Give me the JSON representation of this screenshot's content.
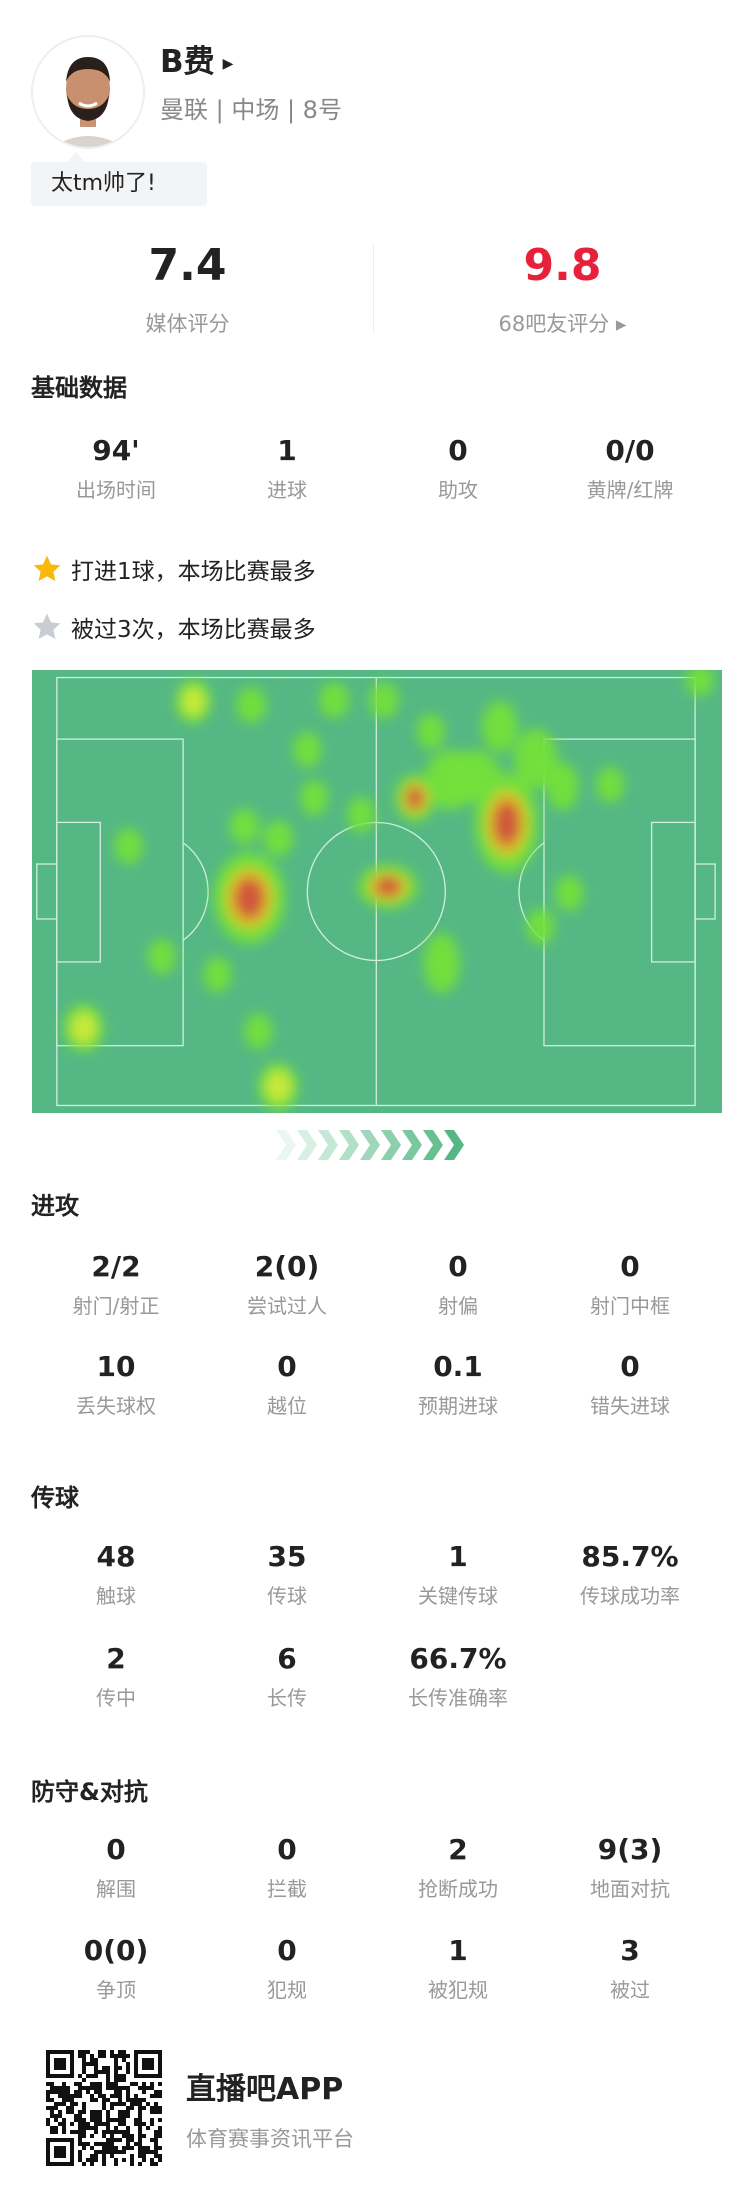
{
  "player": {
    "name": "B费",
    "subtitle": "曼联 | 中场 | 8号",
    "comment": "太tm帅了!",
    "name_arrow_icon": "triangle-right-icon"
  },
  "ratings": {
    "media": {
      "value": "7.4",
      "label": "媒体评分"
    },
    "fans": {
      "value": "9.8",
      "label": "68吧友评分 ▸",
      "color": "#e8213a"
    }
  },
  "basic": {
    "title": "基础数据",
    "stats": [
      {
        "value": "94'",
        "label": "出场时间"
      },
      {
        "value": "1",
        "label": "进球"
      },
      {
        "value": "0",
        "label": "助攻"
      },
      {
        "value": "0/0",
        "label": "黄牌/红牌"
      }
    ]
  },
  "highlights": [
    {
      "icon": "gold-star-icon",
      "text": "打进1球，本场比赛最多",
      "color": "#f9b90c"
    },
    {
      "icon": "silver-star-icon",
      "text": "被过3次，本场比赛最多",
      "color": "#c9ccd3"
    }
  ],
  "heatmap": {
    "pitch_color": "#55b884",
    "direction_icon": "chevron-right-icon"
  },
  "attack": {
    "title": "进攻",
    "stats": [
      {
        "value": "2/2",
        "label": "射门/射正"
      },
      {
        "value": "2(0)",
        "label": "尝试过人"
      },
      {
        "value": "0",
        "label": "射偏"
      },
      {
        "value": "0",
        "label": "射门中框"
      },
      {
        "value": "10",
        "label": "丢失球权"
      },
      {
        "value": "0",
        "label": "越位"
      },
      {
        "value": "0.1",
        "label": "预期进球"
      },
      {
        "value": "0",
        "label": "错失进球"
      }
    ]
  },
  "passing": {
    "title": "传球",
    "stats": [
      {
        "value": "48",
        "label": "触球"
      },
      {
        "value": "35",
        "label": "传球"
      },
      {
        "value": "1",
        "label": "关键传球"
      },
      {
        "value": "85.7%",
        "label": "传球成功率"
      },
      {
        "value": "2",
        "label": "传中"
      },
      {
        "value": "6",
        "label": "长传"
      },
      {
        "value": "66.7%",
        "label": "长传准确率"
      }
    ]
  },
  "defense": {
    "title": "防守&对抗",
    "stats": [
      {
        "value": "0",
        "label": "解围"
      },
      {
        "value": "0",
        "label": "拦截"
      },
      {
        "value": "2",
        "label": "抢断成功"
      },
      {
        "value": "9(3)",
        "label": "地面对抗"
      },
      {
        "value": "0(0)",
        "label": "争顶"
      },
      {
        "value": "0",
        "label": "犯规"
      },
      {
        "value": "1",
        "label": "被犯规"
      },
      {
        "value": "3",
        "label": "被过"
      }
    ]
  },
  "footer": {
    "app_name": "直播吧APP",
    "tagline": "体育赛事资讯平台",
    "qr_icon": "qr-code-icon"
  }
}
